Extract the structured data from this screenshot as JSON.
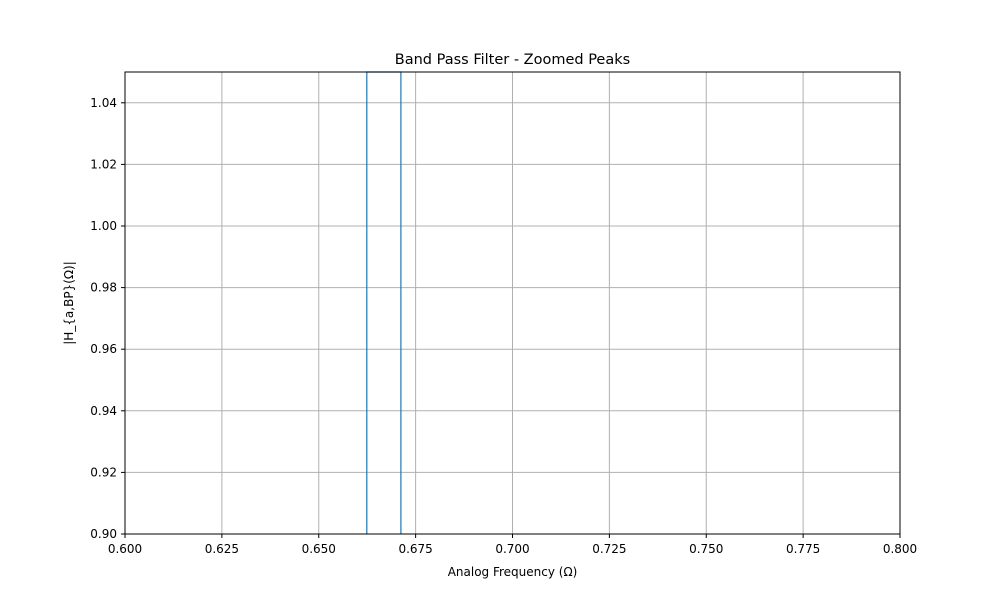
{
  "chart_data": {
    "type": "line",
    "title": "Band Pass Filter - Zoomed Peaks",
    "xlabel": "Analog Frequency (Ω)",
    "ylabel": "|H_{a,BP}(Ω)|",
    "xlim": [
      0.6,
      0.8
    ],
    "ylim": [
      0.9,
      1.05
    ],
    "x_ticks": [
      0.6,
      0.625,
      0.65,
      0.675,
      0.7,
      0.725,
      0.75,
      0.775,
      0.8
    ],
    "x_tick_labels": [
      "0.600",
      "0.625",
      "0.650",
      "0.675",
      "0.700",
      "0.725",
      "0.750",
      "0.775",
      "0.800"
    ],
    "y_ticks": [
      0.9,
      0.92,
      0.94,
      0.96,
      0.98,
      1.0,
      1.02,
      1.04
    ],
    "y_tick_labels": [
      "0.90",
      "0.92",
      "0.94",
      "0.96",
      "0.98",
      "1.00",
      "1.02",
      "1.04"
    ],
    "grid": true,
    "series": [
      {
        "color": "#1f77b4",
        "x": [
          0.6624,
          0.6624,
          0.6712,
          0.6712
        ],
        "y": [
          0.9,
          1.05,
          1.05,
          0.9
        ]
      }
    ]
  }
}
